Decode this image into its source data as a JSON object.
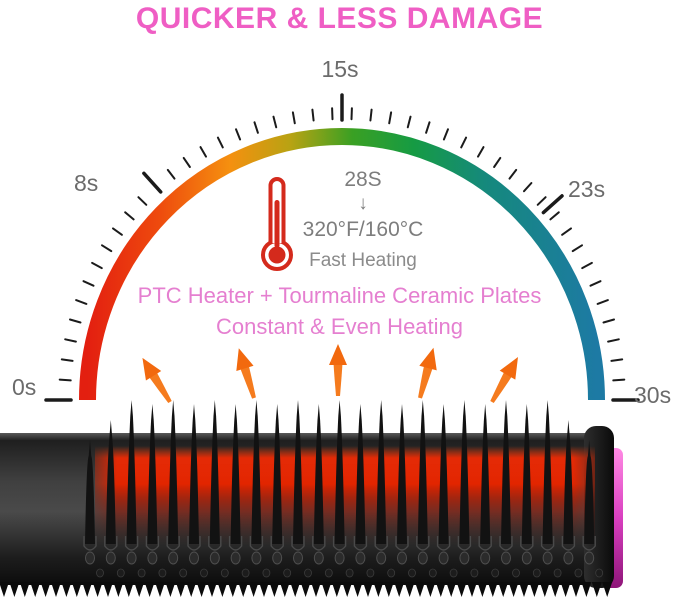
{
  "title": "QUICKER & LESS DAMAGE",
  "gauge": {
    "tick_labels": [
      "0s",
      "8s",
      "15s",
      "23s",
      "30s"
    ],
    "center_annotation": {
      "time": "28S",
      "arrow_glyph": "↓",
      "temperature": "320°F/160°C",
      "caption": "Fast Heating"
    }
  },
  "features": {
    "line1": "PTC Heater + Tourmaline Ceramic Plates",
    "line2": "Constant & Even Heating"
  },
  "icons": {
    "thermometer_icon": "🌡",
    "heat_arrow_icon": "↑",
    "down_arrow_glyph": "↓"
  },
  "colors": {
    "title_pink": "#ef5ec4",
    "feature_pink": "#e57fd0",
    "label_gray": "#6b6b6b",
    "annotation_gray": "#7d7d7d",
    "thermometer_red": "#d42a1c",
    "arrow_orange": "#f57b1e",
    "glow_red": "#e22500",
    "accent_magenta": "#d93fc0",
    "brush_black": "#1a1a1a",
    "arc_gradient": [
      "#e31f10",
      "#ee4a0e",
      "#f5900f",
      "#b7a313",
      "#3aa023",
      "#169b43",
      "#15897c",
      "#1d7aa4"
    ]
  }
}
